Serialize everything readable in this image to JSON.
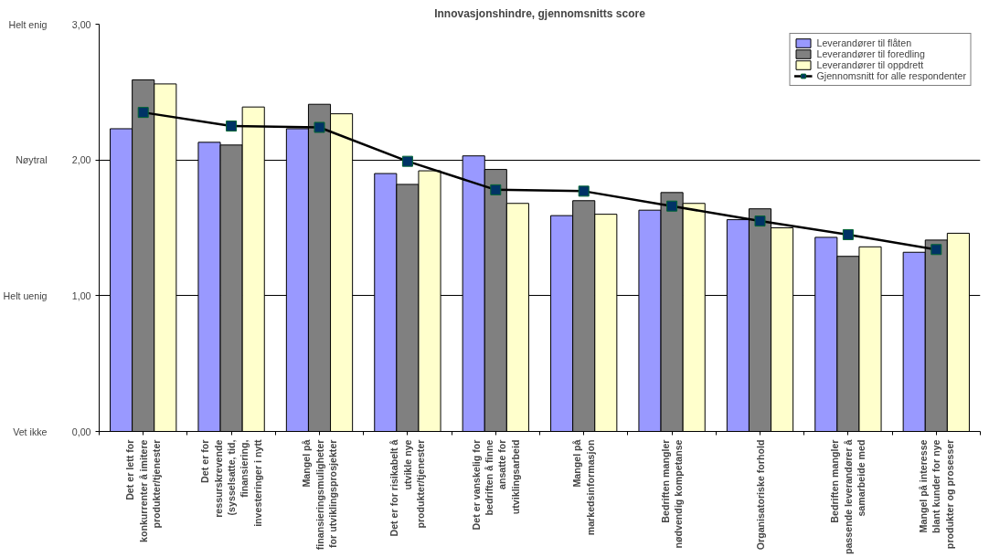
{
  "chart_data": {
    "type": "bar",
    "title": "Innovasjonshindre, gjennomsnitts score",
    "categories": [
      "Det er lett for konkurrenter å imitere produkter/tjenester",
      "Det er for ressurskrevende (sysselsatte, tid, finansiering, investeringer i nytt",
      "Mangel på finansieringsmuligheter for utviklingsprosjekter",
      "Det er for risikabelt å utvikle nye produkter/tjenester",
      "Det er vanskelig for bedriften å finne ansatte for utviklingsarbeid",
      "Mangel på markedsinformasjon",
      "Bedriften mangler nødvendig kompetanse",
      "Organisatoriske forhold",
      "Bedriften mangler passende leverandører å samarbeide med",
      "Mangel på interesse blant kunder for nye produkter og prosesser"
    ],
    "series": [
      {
        "name": "Leverandører til flåten",
        "color": "#9999ff",
        "values": [
          2.23,
          2.13,
          2.23,
          1.9,
          2.03,
          1.59,
          1.63,
          1.56,
          1.43,
          1.32
        ]
      },
      {
        "name": "Leverandører til foredling",
        "color": "#808080",
        "values": [
          2.59,
          2.11,
          2.41,
          1.82,
          1.93,
          1.7,
          1.76,
          1.64,
          1.29,
          1.41
        ]
      },
      {
        "name": "Leverandører til oppdrett",
        "color": "#ffffcc",
        "values": [
          2.56,
          2.39,
          2.34,
          1.92,
          1.68,
          1.6,
          1.68,
          1.5,
          1.36,
          1.46
        ]
      },
      {
        "name": "Gjennomsnitt for alle respondenter",
        "type": "line",
        "color": "#000000",
        "marker": "square",
        "values": [
          2.35,
          2.25,
          2.24,
          1.99,
          1.78,
          1.77,
          1.66,
          1.55,
          1.45,
          1.34
        ]
      }
    ],
    "ylim": [
      0,
      3
    ],
    "yticks": [
      {
        "value": 0,
        "label": "0,00"
      },
      {
        "value": 1,
        "label": "1,00"
      },
      {
        "value": 2,
        "label": "2,00"
      },
      {
        "value": 3,
        "label": "3,00"
      }
    ],
    "annotations": [
      "Vet ikke",
      "Helt uenig",
      "Nøytral",
      "Helt enig"
    ],
    "grid": "y",
    "legend": "top right"
  }
}
